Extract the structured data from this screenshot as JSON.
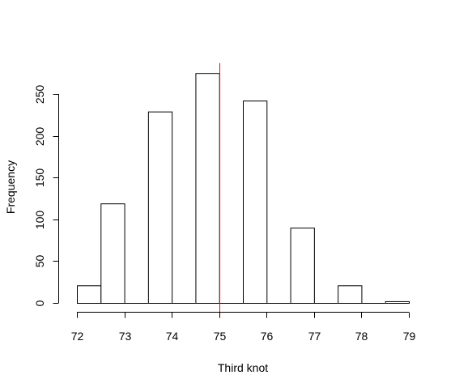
{
  "chart_data": {
    "type": "histogram",
    "title": "",
    "xlabel": "Third knot",
    "ylabel": "Frequency",
    "xlim": [
      72,
      79
    ],
    "ylim": [
      0,
      280
    ],
    "x_ticks": [
      72,
      73,
      74,
      75,
      76,
      77,
      78,
      79
    ],
    "y_ticks": [
      0,
      50,
      100,
      150,
      200,
      250
    ],
    "bins": [
      {
        "start": 72.0,
        "end": 72.5,
        "count": 21
      },
      {
        "start": 72.5,
        "end": 73.0,
        "count": 119
      },
      {
        "start": 73.0,
        "end": 73.5,
        "count": 0
      },
      {
        "start": 73.5,
        "end": 74.0,
        "count": 229
      },
      {
        "start": 74.0,
        "end": 74.5,
        "count": 0
      },
      {
        "start": 74.5,
        "end": 75.0,
        "count": 275
      },
      {
        "start": 75.0,
        "end": 75.5,
        "count": 0
      },
      {
        "start": 75.5,
        "end": 76.0,
        "count": 242
      },
      {
        "start": 76.0,
        "end": 76.5,
        "count": 0
      },
      {
        "start": 76.5,
        "end": 77.0,
        "count": 90
      },
      {
        "start": 77.0,
        "end": 77.5,
        "count": 0
      },
      {
        "start": 77.5,
        "end": 78.0,
        "count": 21
      },
      {
        "start": 78.0,
        "end": 78.5,
        "count": 0
      },
      {
        "start": 78.5,
        "end": 79.0,
        "count": 2
      }
    ],
    "reference_line": {
      "x": 75,
      "color": "#ff0000"
    },
    "bar_fill": "#ffffff",
    "bar_stroke": "#000000",
    "grid": false,
    "legend": "none"
  }
}
